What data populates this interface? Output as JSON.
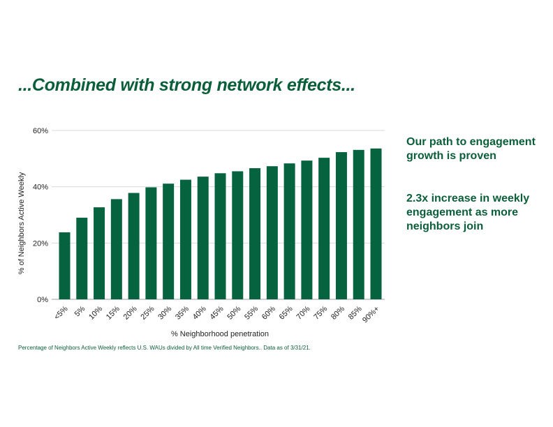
{
  "title": "...Combined with strong network effects...",
  "side_text": {
    "point1": "Our path to engagement growth is proven",
    "point2": "2.3x increase in weekly engagement as more neighbors join"
  },
  "footnote": "Percentage of Neighbors  Active Weekly reflects U.S. WAUs divided by All time Verified Neighbors.. Data as of 3/31/21.",
  "colors": {
    "brand_green": "#0b5e3a",
    "bar_green": "#05633f",
    "grid": "#d9d9d9"
  },
  "chart_data": {
    "type": "bar",
    "title": "",
    "xlabel": "% Neighborhood penetration",
    "ylabel": "% of Neighbors Active Weekly",
    "categories": [
      "<5%",
      "5%",
      "10%",
      "15%",
      "20%",
      "25%",
      "30%",
      "35%",
      "40%",
      "45%",
      "50%",
      "55%",
      "60%",
      "65%",
      "70%",
      "75%",
      "80%",
      "85%",
      "90%+"
    ],
    "values": [
      23.8,
      29.0,
      32.7,
      35.6,
      37.8,
      39.8,
      41.1,
      42.5,
      43.6,
      44.8,
      45.5,
      46.6,
      47.3,
      48.3,
      49.3,
      50.3,
      52.3,
      53.1,
      53.6
    ],
    "ylim": [
      0,
      60
    ],
    "yticks": [
      0,
      20,
      40,
      60
    ],
    "ytick_labels": [
      "0%",
      "20%",
      "40%",
      "60%"
    ],
    "grid": true
  }
}
